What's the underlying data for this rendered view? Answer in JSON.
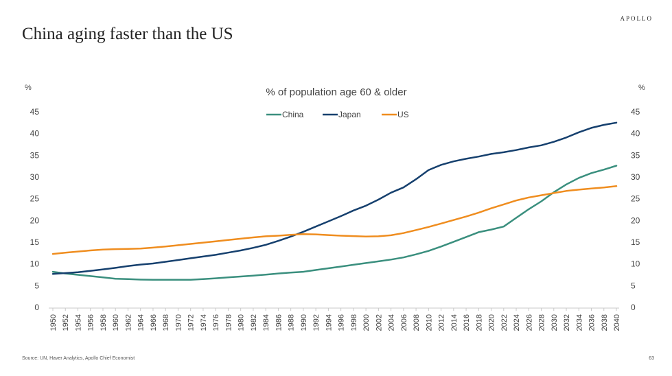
{
  "slide": {
    "brand": "APOLLO",
    "title": "China aging faster than the US",
    "source": "Source: UN, Haver Analytics, Apollo Chief Economist",
    "page": "63"
  },
  "chart_data": {
    "type": "line",
    "title": "% of population age 60 & older",
    "ylabel_left": "%",
    "ylabel_right": "%",
    "ylim": [
      0,
      45
    ],
    "yticks": [
      0,
      5,
      10,
      15,
      20,
      25,
      30,
      35,
      40,
      45
    ],
    "legend_position": "top-center",
    "grid": false,
    "x": [
      1950,
      1952,
      1954,
      1956,
      1958,
      1960,
      1962,
      1964,
      1966,
      1968,
      1970,
      1972,
      1974,
      1976,
      1978,
      1980,
      1982,
      1984,
      1986,
      1988,
      1990,
      1992,
      1994,
      1996,
      1998,
      2000,
      2002,
      2004,
      2006,
      2008,
      2010,
      2012,
      2014,
      2016,
      2018,
      2020,
      2022,
      2024,
      2026,
      2028,
      2030,
      2032,
      2034,
      2036,
      2038,
      2040
    ],
    "series": [
      {
        "name": "China",
        "color": "#3a8f7e",
        "values": [
          8.2,
          7.8,
          7.5,
          7.2,
          6.9,
          6.6,
          6.5,
          6.4,
          6.35,
          6.35,
          6.35,
          6.35,
          6.5,
          6.7,
          6.9,
          7.1,
          7.3,
          7.55,
          7.8,
          8.0,
          8.2,
          8.6,
          9.0,
          9.4,
          9.8,
          10.2,
          10.6,
          11.0,
          11.5,
          12.2,
          13.0,
          14.0,
          15.1,
          16.2,
          17.3,
          17.9,
          18.6,
          20.6,
          22.6,
          24.4,
          26.5,
          28.3,
          29.8,
          30.9,
          31.7,
          32.6
        ]
      },
      {
        "name": "Japan",
        "color": "#16406e",
        "values": [
          7.7,
          7.9,
          8.1,
          8.4,
          8.75,
          9.1,
          9.5,
          9.85,
          10.1,
          10.5,
          10.9,
          11.3,
          11.7,
          12.1,
          12.6,
          13.1,
          13.7,
          14.4,
          15.3,
          16.3,
          17.4,
          18.6,
          19.8,
          21.0,
          22.3,
          23.4,
          24.8,
          26.4,
          27.6,
          29.5,
          31.6,
          32.8,
          33.6,
          34.2,
          34.7,
          35.3,
          35.7,
          36.2,
          36.8,
          37.3,
          38.1,
          39.1,
          40.3,
          41.3,
          42.0,
          42.5
        ]
      },
      {
        "name": "US",
        "color": "#ef8d1f",
        "values": [
          12.3,
          12.6,
          12.85,
          13.1,
          13.3,
          13.4,
          13.45,
          13.55,
          13.75,
          14.0,
          14.3,
          14.6,
          14.9,
          15.2,
          15.5,
          15.8,
          16.1,
          16.35,
          16.5,
          16.7,
          16.85,
          16.8,
          16.65,
          16.5,
          16.4,
          16.3,
          16.35,
          16.6,
          17.1,
          17.8,
          18.5,
          19.3,
          20.1,
          20.9,
          21.8,
          22.8,
          23.7,
          24.6,
          25.3,
          25.8,
          26.3,
          26.8,
          27.1,
          27.35,
          27.6,
          27.9
        ]
      }
    ]
  }
}
